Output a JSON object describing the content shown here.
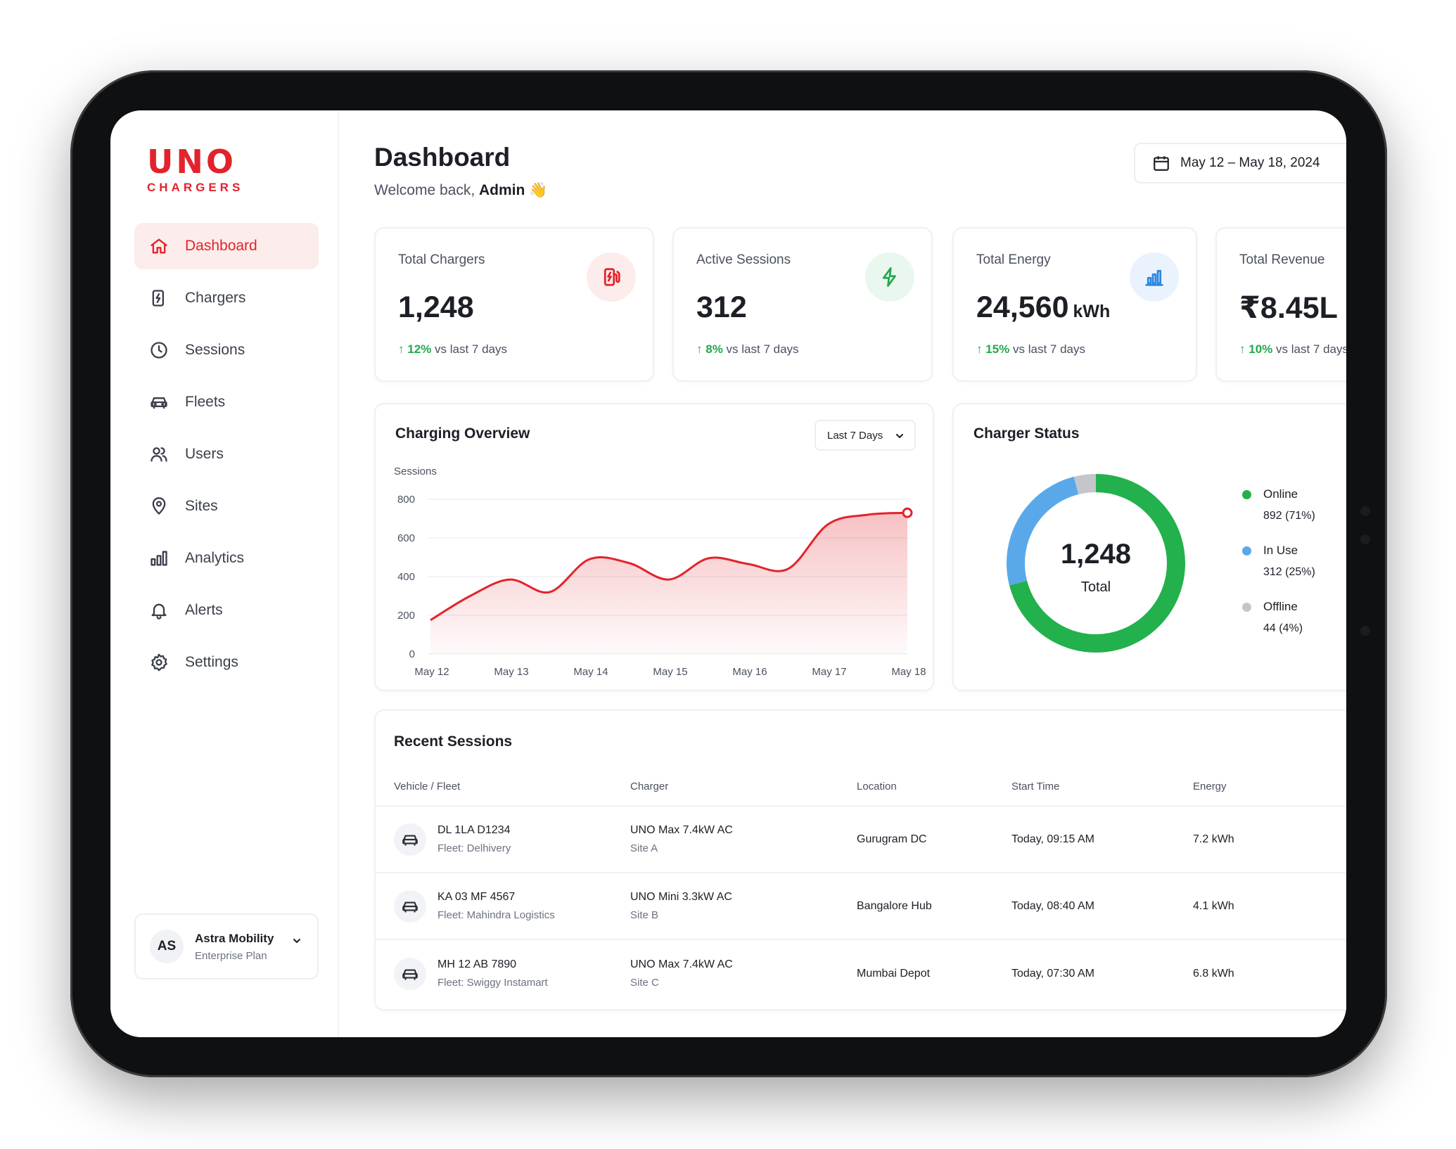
{
  "brand": {
    "logo_text": "UNO",
    "logo_sub": "CHARGERS",
    "accent": "#e2232b"
  },
  "sidebar": {
    "items": [
      {
        "label": "Dashboard",
        "icon": "home-icon",
        "active": true
      },
      {
        "label": "Chargers",
        "icon": "charger-icon"
      },
      {
        "label": "Sessions",
        "icon": "clock-icon"
      },
      {
        "label": "Fleets",
        "icon": "car-icon"
      },
      {
        "label": "Users",
        "icon": "users-icon"
      },
      {
        "label": "Sites",
        "icon": "location-pin-icon"
      },
      {
        "label": "Analytics",
        "icon": "bar-chart-icon"
      },
      {
        "label": "Alerts",
        "icon": "bell-icon"
      },
      {
        "label": "Settings",
        "icon": "gear-icon"
      }
    ],
    "account": {
      "initials": "AS",
      "name": "Astra Mobility",
      "plan": "Enterprise Plan"
    }
  },
  "header": {
    "title": "Dashboard",
    "welcome_prefix": "Welcome back,",
    "welcome_name": "Admin",
    "welcome_emoji": "👋",
    "date_range": "May 12 – May 18, 2024"
  },
  "stats": [
    {
      "label": "Total Chargers",
      "value": "1,248",
      "unit": "",
      "delta": "12%",
      "delta_text": "vs last 7 days",
      "icon": "charger-icon",
      "icon_color": "#e2232b",
      "icon_bg": "#fdecec"
    },
    {
      "label": "Active Sessions",
      "value": "312",
      "unit": "",
      "delta": "8%",
      "delta_text": "vs last 7 days",
      "icon": "lightning-icon",
      "icon_color": "#22a94a",
      "icon_bg": "#e9f7ee"
    },
    {
      "label": "Total Energy",
      "value": "24,560",
      "unit": "kWh",
      "delta": "15%",
      "delta_text": "vs last 7 days",
      "icon": "bar-chart-icon",
      "icon_color": "#2f86de",
      "icon_bg": "#eaf3fd"
    },
    {
      "label": "Total Revenue",
      "value": "₹8.45L",
      "unit": "",
      "delta": "10%",
      "delta_text": "vs last 7 days",
      "icon": "",
      "icon_color": "",
      "icon_bg": ""
    }
  ],
  "overview": {
    "title": "Charging Overview",
    "range": "Last 7 Days"
  },
  "chart_data": {
    "type": "line",
    "title": "Charging Overview",
    "ylabel": "Sessions",
    "xlabel": "",
    "ylim": [
      0,
      800
    ],
    "yticks": [
      0,
      200,
      400,
      600,
      800
    ],
    "categories": [
      "May 12",
      "May 13",
      "May 14",
      "May 15",
      "May 16",
      "May 17",
      "May 18"
    ],
    "x": [
      0,
      0.5,
      1,
      1.5,
      2,
      2.5,
      3,
      3.5,
      4,
      4.5,
      5,
      5.5,
      6
    ],
    "values": [
      175,
      300,
      385,
      320,
      490,
      470,
      385,
      495,
      465,
      440,
      670,
      720,
      730
    ],
    "line_color": "#e2232b",
    "fill": "gradient-red",
    "grid": true,
    "legend": "none"
  },
  "status": {
    "title": "Charger Status",
    "total": "1,248",
    "total_label": "Total",
    "items": [
      {
        "name": "Online",
        "value": "892 (71%)",
        "pct": 71,
        "color": "#22b14c"
      },
      {
        "name": "In Use",
        "value": "312 (25%)",
        "pct": 25,
        "color": "#59a9ea"
      },
      {
        "name": "Offline",
        "value": "44 (4%)",
        "pct": 4,
        "color": "#c4c6cc"
      }
    ]
  },
  "sessions": {
    "title": "Recent Sessions",
    "columns": [
      "Vehicle / Fleet",
      "Charger",
      "Location",
      "Start Time",
      "Energy"
    ],
    "rows": [
      {
        "vehicle": "DL 1LA D1234",
        "fleet": "Fleet: Delhivery",
        "charger": "UNO Max 7.4kW AC",
        "site": "Site A",
        "location": "Gurugram DC",
        "start": "Today, 09:15 AM",
        "energy": "7.2 kWh"
      },
      {
        "vehicle": "KA 03 MF 4567",
        "fleet": "Fleet: Mahindra Logistics",
        "charger": "UNO Mini 3.3kW AC",
        "site": "Site B",
        "location": "Bangalore Hub",
        "start": "Today, 08:40 AM",
        "energy": "4.1 kWh"
      },
      {
        "vehicle": "MH 12 AB 7890",
        "fleet": "Fleet: Swiggy Instamart",
        "charger": "UNO Max 7.4kW AC",
        "site": "Site C",
        "location": "Mumbai Depot",
        "start": "Today, 07:30 AM",
        "energy": "6.8 kWh"
      }
    ]
  }
}
